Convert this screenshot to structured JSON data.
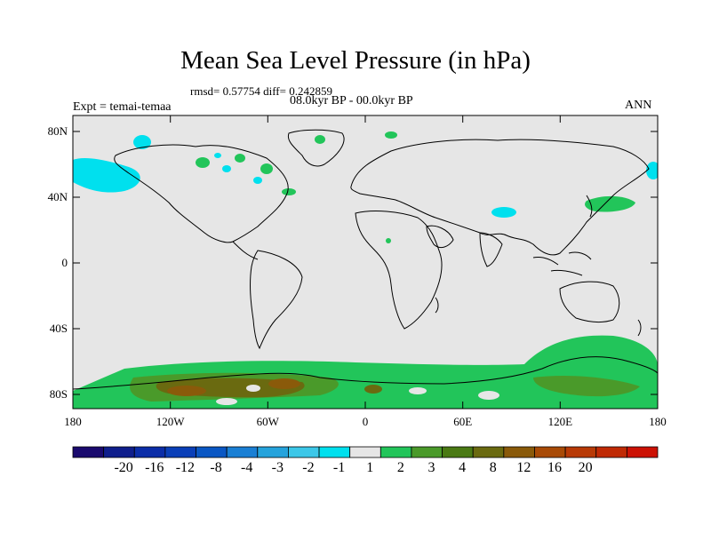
{
  "title": "Mean Sea Level Pressure (in hPa)",
  "stats": "rmsd= 0.57754 diff= 0.242859",
  "period": "08.0kyr BP - 00.0kyr BP",
  "experiment": "Expt = temai-temaa",
  "season": "ANN",
  "axes": {
    "x_ticks": [
      "180",
      "120W",
      "60W",
      "0",
      "60E",
      "120E",
      "180"
    ],
    "y_ticks": [
      "80N",
      "40N",
      "0",
      "40S",
      "80S"
    ]
  },
  "colorbar": {
    "colors": [
      "#1a0a6e",
      "#0f1e8c",
      "#0b2da8",
      "#0a3fb8",
      "#0a57c4",
      "#1a7fd4",
      "#25a3dc",
      "#3cc7e8",
      "#00e0ee",
      "#e6e6e6",
      "#22c55a",
      "#4a9a2a",
      "#4a7a14",
      "#6a6a10",
      "#8a5a0a",
      "#a84a06",
      "#b83a06",
      "#c02a04",
      "#cc1204"
    ],
    "labels": [
      "-20",
      "-16",
      "-12",
      "-8",
      "-4",
      "-3",
      "-2",
      "-1",
      "1",
      "2",
      "3",
      "4",
      "8",
      "12",
      "16",
      "20"
    ]
  },
  "chart_data": {
    "type": "heatmap",
    "title": "Mean Sea Level Pressure (in hPa)",
    "subtitle": "08.0kyr BP - 00.0kyr BP",
    "xlim": [
      -180,
      180
    ],
    "ylim": [
      -90,
      90
    ],
    "colorbar_levels": [
      -20,
      -16,
      -12,
      -8,
      -4,
      -3,
      -2,
      -1,
      1,
      2,
      3,
      4,
      8,
      12,
      16,
      20
    ],
    "units": "hPa"
  }
}
